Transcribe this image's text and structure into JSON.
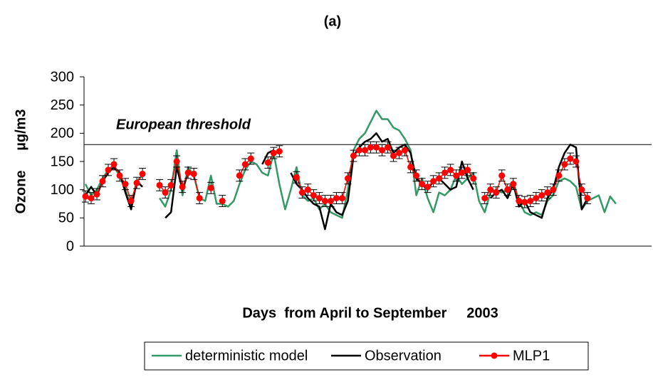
{
  "chart_data": {
    "type": "line",
    "title": "(a)",
    "x_label": "Days  from April to September     2003",
    "y_label": "Ozone     µg/m3",
    "annotation": {
      "text": "European threshold",
      "value": 180
    },
    "ylim": [
      0,
      300
    ],
    "yticks": [
      0,
      50,
      100,
      150,
      200,
      250,
      300
    ],
    "legend": "bottom",
    "series": [
      {
        "name": "deterministic model",
        "color": "#339966",
        "values": [
          110,
          90,
          100,
          120,
          135,
          140,
          125,
          100,
          70,
          115,
          125,
          null,
          null,
          85,
          70,
          100,
          170,
          90,
          140,
          125,
          85,
          80,
          125,
          75,
          75,
          70,
          80,
          110,
          135,
          150,
          145,
          130,
          125,
          165,
          110,
          65,
          100,
          140,
          90,
          80,
          85,
          65,
          75,
          60,
          55,
          50,
          100,
          170,
          190,
          200,
          220,
          240,
          225,
          225,
          210,
          205,
          190,
          170,
          90,
          120,
          85,
          60,
          95,
          90,
          100,
          125,
          110,
          120,
          130,
          80,
          60,
          95,
          100,
          95,
          100,
          115,
          80,
          60,
          55,
          60,
          55,
          80,
          90,
          115,
          120,
          115,
          105,
          65,
          80,
          85,
          90,
          60,
          88,
          75
        ]
      },
      {
        "name": "Observation",
        "color": "#000000",
        "values": [
          90,
          105,
          90,
          115,
          130,
          140,
          130,
          95,
          65,
          115,
          105,
          null,
          null,
          null,
          50,
          60,
          140,
          100,
          130,
          null,
          null,
          null,
          null,
          null,
          null,
          null,
          null,
          null,
          null,
          null,
          null,
          145,
          165,
          170,
          null,
          null,
          130,
          110,
          100,
          85,
          75,
          70,
          30,
          75,
          60,
          55,
          80,
          160,
          175,
          185,
          190,
          200,
          185,
          190,
          165,
          175,
          180,
          165,
          120,
          110,
          100,
          115,
          120,
          110,
          100,
          105,
          150,
          120,
          100,
          null,
          null,
          85,
          95,
          100,
          85,
          110,
          70,
          80,
          60,
          55,
          50,
          85,
          100,
          140,
          165,
          180,
          175,
          65,
          85,
          null,
          null,
          null,
          null,
          null
        ]
      },
      {
        "name": "MLP1",
        "color": "#ff0000",
        "markers": true,
        "error": 10,
        "values": [
          88,
          85,
          92,
          115,
          135,
          145,
          125,
          110,
          80,
          112,
          128,
          null,
          null,
          108,
          95,
          108,
          150,
          105,
          130,
          128,
          85,
          null,
          103,
          null,
          80,
          null,
          null,
          125,
          145,
          155,
          null,
          null,
          148,
          165,
          168,
          null,
          null,
          122,
          95,
          100,
          90,
          85,
          80,
          80,
          85,
          85,
          120,
          160,
          170,
          170,
          175,
          175,
          170,
          175,
          160,
          165,
          170,
          140,
          125,
          110,
          105,
          115,
          120,
          130,
          135,
          125,
          130,
          135,
          120,
          null,
          85,
          100,
          95,
          125,
          100,
          110,
          80,
          78,
          80,
          85,
          90,
          95,
          100,
          125,
          145,
          155,
          150,
          100,
          85,
          null,
          null,
          null,
          null,
          null
        ]
      }
    ]
  }
}
